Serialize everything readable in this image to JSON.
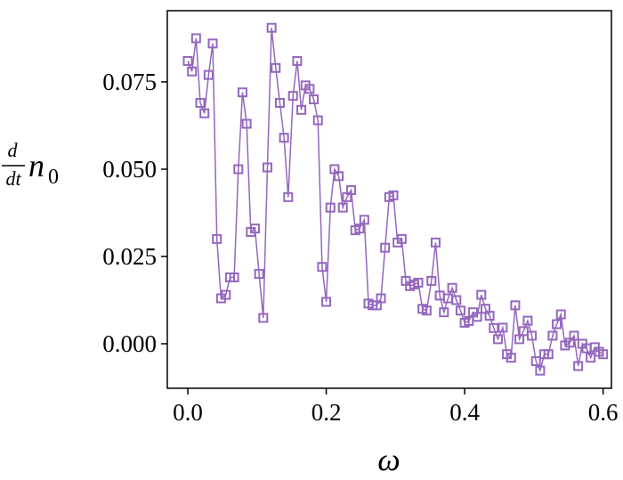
{
  "chart_data": {
    "type": "line",
    "marker": "square",
    "color": "#9467bd",
    "x_label": "ω",
    "y_label": {
      "numerator": "d",
      "denominator": "dt",
      "symbol": "n",
      "subscript": "0"
    },
    "x": [
      0,
      0.006,
      0.012,
      0.018,
      0.024,
      0.03,
      0.036,
      0.042,
      0.048,
      0.055,
      0.061,
      0.067,
      0.073,
      0.079,
      0.085,
      0.091,
      0.097,
      0.103,
      0.109,
      0.115,
      0.121,
      0.127,
      0.133,
      0.139,
      0.145,
      0.152,
      0.158,
      0.164,
      0.17,
      0.176,
      0.182,
      0.188,
      0.194,
      0.2,
      0.206,
      0.212,
      0.218,
      0.224,
      0.23,
      0.236,
      0.242,
      0.248,
      0.255,
      0.261,
      0.267,
      0.273,
      0.279,
      0.285,
      0.291,
      0.297,
      0.303,
      0.309,
      0.315,
      0.321,
      0.327,
      0.333,
      0.339,
      0.345,
      0.352,
      0.358,
      0.364,
      0.37,
      0.376,
      0.382,
      0.388,
      0.394,
      0.4,
      0.406,
      0.412,
      0.418,
      0.424,
      0.43,
      0.436,
      0.442,
      0.448,
      0.455,
      0.461,
      0.467,
      0.473,
      0.479,
      0.485,
      0.491,
      0.497,
      0.503,
      0.509,
      0.515,
      0.521,
      0.527,
      0.533,
      0.539,
      0.545,
      0.552,
      0.558,
      0.564,
      0.57,
      0.576,
      0.582,
      0.588,
      0.594,
      0.6
    ],
    "values": [
      0.081,
      0.078,
      0.0875,
      0.069,
      0.066,
      0.077,
      0.086,
      0.03,
      0.013,
      0.014,
      0.019,
      0.019,
      0.05,
      0.072,
      0.063,
      0.032,
      0.033,
      0.02,
      0.0074,
      0.0505,
      0.0905,
      0.079,
      0.069,
      0.059,
      0.042,
      0.071,
      0.081,
      0.067,
      0.074,
      0.073,
      0.07,
      0.064,
      0.022,
      0.012,
      0.039,
      0.05,
      0.048,
      0.039,
      0.042,
      0.044,
      0.0325,
      0.033,
      0.0355,
      0.0115,
      0.011,
      0.011,
      0.013,
      0.0275,
      0.042,
      0.0425,
      0.029,
      0.03,
      0.018,
      0.0165,
      0.017,
      0.0175,
      0.01,
      0.0095,
      0.018,
      0.029,
      0.0138,
      0.009,
      0.013,
      0.016,
      0.0125,
      0.0095,
      0.006,
      0.0065,
      0.009,
      0.0077,
      0.014,
      0.01,
      0.008,
      0.0045,
      0.0013,
      0.0046,
      -0.003,
      -0.004,
      0.011,
      0.0013,
      0.0036,
      0.0066,
      0.0023,
      -0.005,
      -0.0077,
      -0.003,
      -0.003,
      0.0023,
      0.0056,
      0.0084,
      -0.0005,
      0.0003,
      0.0023,
      -0.0064,
      0.0,
      -0.0013,
      -0.004,
      -0.001,
      -0.0023,
      -0.003
    ],
    "xlim": [
      -0.0296,
      0.612
    ],
    "ylim": [
      -0.01276,
      0.0954
    ],
    "xticks": [
      {
        "value": 0,
        "label": "0.0"
      },
      {
        "value": 0.2,
        "label": "0.2"
      },
      {
        "value": 0.4,
        "label": "0.4"
      },
      {
        "value": 0.6,
        "label": "0.6"
      }
    ],
    "yticks": [
      {
        "value": 0,
        "label": "0.000"
      },
      {
        "value": 0.025,
        "label": "0.025"
      },
      {
        "value": 0.05,
        "label": "0.050"
      },
      {
        "value": 0.075,
        "label": "0.075"
      }
    ]
  }
}
